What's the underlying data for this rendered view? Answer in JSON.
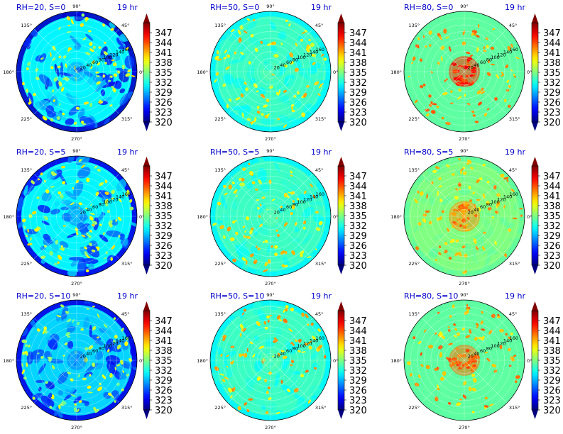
{
  "figure": {
    "colormap": "jet",
    "title_color": "#0000cc",
    "colorbar_ticks": [
      "347",
      "344",
      "341",
      "338",
      "335",
      "332",
      "329",
      "326",
      "323",
      "320"
    ],
    "angle_labels": [
      "90°",
      "45°",
      "0°",
      "315°",
      "270°",
      "225°",
      "180°",
      "135°"
    ],
    "radial_labels": [
      "20",
      "40",
      "60",
      "80",
      "100",
      "120",
      "140",
      "160"
    ]
  },
  "chart_data": [
    {
      "type": "heatmap",
      "projection": "polar",
      "title": "RH=20, S=0",
      "time_label": "19 hr",
      "vmin": 320,
      "vmax": 350,
      "base_level": 331,
      "core_level": 328,
      "rim_level": 322,
      "spot_level": 337,
      "theta_ticks_deg": [
        0,
        45,
        90,
        135,
        180,
        225,
        270,
        315
      ],
      "r_ticks": [
        20,
        40,
        60,
        80,
        100,
        120,
        140,
        160
      ],
      "r_max": 180
    },
    {
      "type": "heatmap",
      "projection": "polar",
      "title": "RH=50, S=0",
      "time_label": "19 hr",
      "vmin": 320,
      "vmax": 350,
      "base_level": 333,
      "core_level": 334,
      "rim_level": 331,
      "spot_level": 339,
      "theta_ticks_deg": [
        0,
        45,
        90,
        135,
        180,
        225,
        270,
        315
      ],
      "r_ticks": [
        20,
        40,
        60,
        80,
        100,
        120,
        140,
        160
      ],
      "r_max": 180
    },
    {
      "type": "heatmap",
      "projection": "polar",
      "title": "RH=80, S=0",
      "time_label": "19 hr",
      "vmin": 320,
      "vmax": 350,
      "base_level": 334,
      "core_level": 345,
      "rim_level": 334,
      "spot_level": 341,
      "theta_ticks_deg": [
        0,
        45,
        90,
        135,
        180,
        225,
        270,
        315
      ],
      "r_ticks": [
        20,
        40,
        60,
        80,
        100,
        120,
        140,
        160
      ],
      "r_max": 180
    },
    {
      "type": "heatmap",
      "projection": "polar",
      "title": "RH=20, S=5",
      "time_label": "19 hr",
      "vmin": 320,
      "vmax": 350,
      "base_level": 331,
      "core_level": 327,
      "rim_level": 323,
      "spot_level": 337,
      "theta_ticks_deg": [
        0,
        45,
        90,
        135,
        180,
        225,
        270,
        315
      ],
      "r_ticks": [
        20,
        40,
        60,
        80,
        100,
        120,
        140,
        160
      ],
      "r_max": 180
    },
    {
      "type": "heatmap",
      "projection": "polar",
      "title": "RH=50, S=5",
      "time_label": "19 hr",
      "vmin": 320,
      "vmax": 350,
      "base_level": 333,
      "core_level": 334,
      "rim_level": 331,
      "spot_level": 339,
      "theta_ticks_deg": [
        0,
        45,
        90,
        135,
        180,
        225,
        270,
        315
      ],
      "r_ticks": [
        20,
        40,
        60,
        80,
        100,
        120,
        140,
        160
      ],
      "r_max": 180
    },
    {
      "type": "heatmap",
      "projection": "polar",
      "title": "RH=80, S=5",
      "time_label": "19 hr",
      "vmin": 320,
      "vmax": 350,
      "base_level": 335,
      "core_level": 342,
      "rim_level": 334,
      "spot_level": 340,
      "theta_ticks_deg": [
        0,
        45,
        90,
        135,
        180,
        225,
        270,
        315
      ],
      "r_ticks": [
        20,
        40,
        60,
        80,
        100,
        120,
        140,
        160
      ],
      "r_max": 180
    },
    {
      "type": "heatmap",
      "projection": "polar",
      "title": "RH=20, S=10",
      "time_label": "19 hr",
      "vmin": 320,
      "vmax": 350,
      "base_level": 330,
      "core_level": 327,
      "rim_level": 323,
      "spot_level": 336,
      "theta_ticks_deg": [
        0,
        45,
        90,
        135,
        180,
        225,
        270,
        315
      ],
      "r_ticks": [
        20,
        40,
        60,
        80,
        100,
        120,
        140,
        160
      ],
      "r_max": 180
    },
    {
      "type": "heatmap",
      "projection": "polar",
      "title": "RH=50, S=10",
      "time_label": "19 hr",
      "vmin": 320,
      "vmax": 350,
      "base_level": 333,
      "core_level": 334,
      "rim_level": 331,
      "spot_level": 340,
      "theta_ticks_deg": [
        0,
        45,
        90,
        135,
        180,
        225,
        270,
        315
      ],
      "r_ticks": [
        20,
        40,
        60,
        80,
        100,
        120,
        140,
        160
      ],
      "r_max": 180
    },
    {
      "type": "heatmap",
      "projection": "polar",
      "title": "RH=80, S=10",
      "time_label": "19 hr",
      "vmin": 320,
      "vmax": 350,
      "base_level": 334,
      "core_level": 343,
      "rim_level": 334,
      "spot_level": 341,
      "theta_ticks_deg": [
        0,
        45,
        90,
        135,
        180,
        225,
        270,
        315
      ],
      "r_ticks": [
        20,
        40,
        60,
        80,
        100,
        120,
        140,
        160
      ],
      "r_max": 180
    }
  ]
}
